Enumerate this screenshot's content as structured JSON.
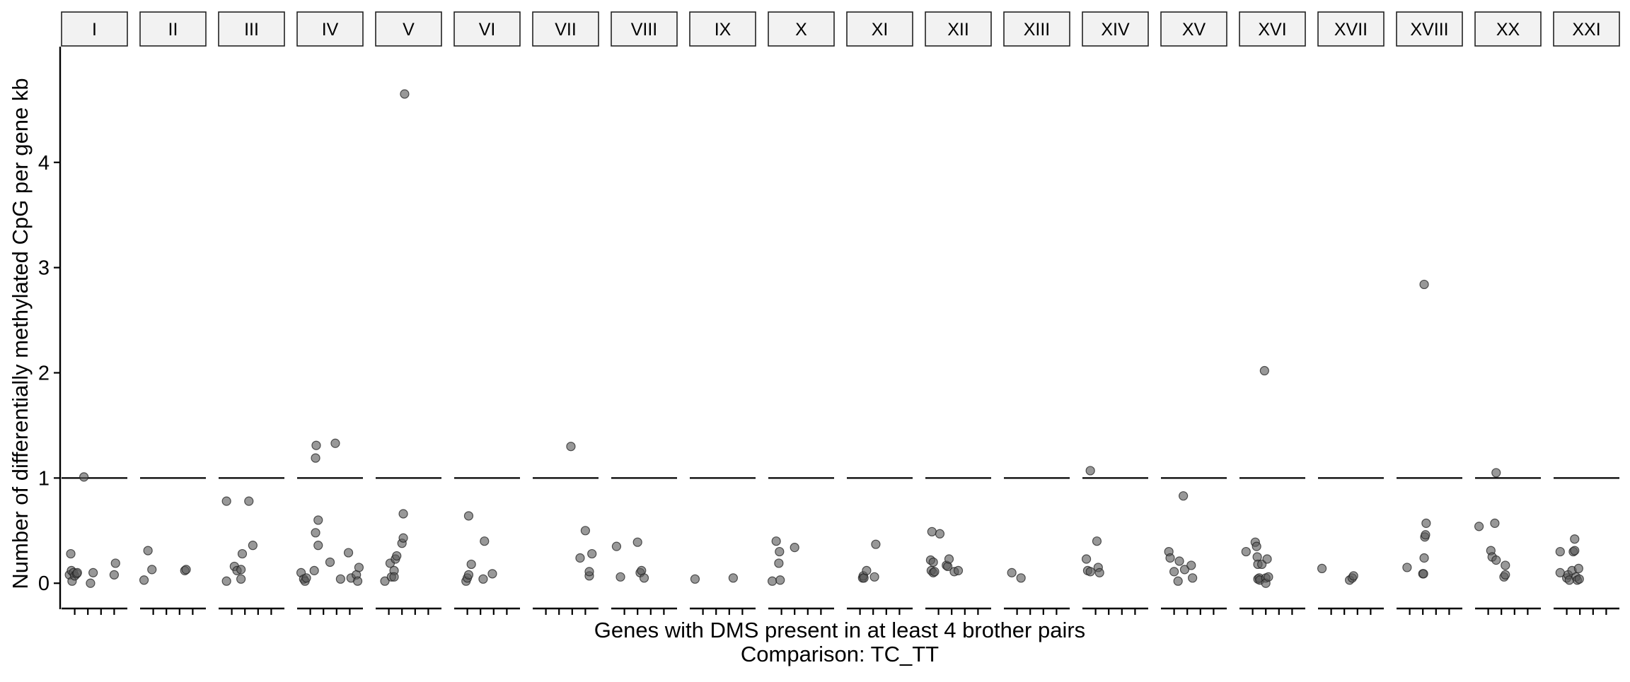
{
  "chart_data": {
    "type": "scatter",
    "facet_by": "chromosome",
    "ylabel": "Number of differentially methylated CpG per gene kb",
    "xlabel": "Genes with DMS present in at least 4 brother pairs",
    "caption": "Comparison: TC_TT",
    "ylim": [
      -0.22,
      5.1
    ],
    "yticks": [
      0,
      1,
      2,
      3,
      4
    ],
    "x_per_panel": [
      0,
      5
    ],
    "x_ticks_per_panel": [
      1,
      2,
      3,
      4
    ],
    "reference_line_y": 1,
    "grid": false,
    "panels": [
      {
        "label": "I",
        "points": [
          {
            "x": 0.6,
            "y": 0.08
          },
          {
            "x": 0.7,
            "y": 0.28
          },
          {
            "x": 0.75,
            "y": 0.12
          },
          {
            "x": 0.8,
            "y": 0.02
          },
          {
            "x": 0.9,
            "y": 0.1
          },
          {
            "x": 1.0,
            "y": 0.07
          },
          {
            "x": 1.15,
            "y": 0.09
          },
          {
            "x": 1.2,
            "y": 0.1
          },
          {
            "x": 1.7,
            "y": 1.01
          },
          {
            "x": 2.2,
            "y": 0.0
          },
          {
            "x": 2.4,
            "y": 0.1
          },
          {
            "x": 4.0,
            "y": 0.08
          },
          {
            "x": 4.1,
            "y": 0.19
          }
        ]
      },
      {
        "label": "II",
        "points": [
          {
            "x": 0.3,
            "y": 0.03
          },
          {
            "x": 0.6,
            "y": 0.31
          },
          {
            "x": 0.9,
            "y": 0.13
          },
          {
            "x": 3.4,
            "y": 0.12
          },
          {
            "x": 3.5,
            "y": 0.13
          }
        ]
      },
      {
        "label": "III",
        "points": [
          {
            "x": 0.6,
            "y": 0.02
          },
          {
            "x": 0.6,
            "y": 0.78
          },
          {
            "x": 1.2,
            "y": 0.16
          },
          {
            "x": 1.4,
            "y": 0.12
          },
          {
            "x": 1.7,
            "y": 0.04
          },
          {
            "x": 1.7,
            "y": 0.13
          },
          {
            "x": 1.8,
            "y": 0.28
          },
          {
            "x": 2.3,
            "y": 0.78
          },
          {
            "x": 2.6,
            "y": 0.36
          }
        ]
      },
      {
        "label": "IV",
        "points": [
          {
            "x": 0.3,
            "y": 0.1
          },
          {
            "x": 0.5,
            "y": 0.04
          },
          {
            "x": 0.6,
            "y": 0.02
          },
          {
            "x": 0.7,
            "y": 0.05
          },
          {
            "x": 1.3,
            "y": 0.12
          },
          {
            "x": 1.4,
            "y": 0.48
          },
          {
            "x": 1.4,
            "y": 1.19
          },
          {
            "x": 1.45,
            "y": 1.31
          },
          {
            "x": 1.6,
            "y": 0.6
          },
          {
            "x": 1.6,
            "y": 0.36
          },
          {
            "x": 2.5,
            "y": 0.2
          },
          {
            "x": 2.9,
            "y": 1.33
          },
          {
            "x": 3.3,
            "y": 0.04
          },
          {
            "x": 3.9,
            "y": 0.29
          },
          {
            "x": 4.1,
            "y": 0.05
          },
          {
            "x": 4.5,
            "y": 0.08
          },
          {
            "x": 4.6,
            "y": 0.02
          },
          {
            "x": 4.7,
            "y": 0.15
          }
        ]
      },
      {
        "label": "V",
        "points": [
          {
            "x": 0.7,
            "y": 0.02
          },
          {
            "x": 1.1,
            "y": 0.19
          },
          {
            "x": 1.2,
            "y": 0.06
          },
          {
            "x": 1.4,
            "y": 0.12
          },
          {
            "x": 1.4,
            "y": 0.06
          },
          {
            "x": 1.5,
            "y": 0.23
          },
          {
            "x": 1.6,
            "y": 0.26
          },
          {
            "x": 2.0,
            "y": 0.38
          },
          {
            "x": 2.1,
            "y": 0.43
          },
          {
            "x": 2.1,
            "y": 0.66
          },
          {
            "x": 2.2,
            "y": 4.65
          }
        ]
      },
      {
        "label": "VI",
        "points": [
          {
            "x": 0.9,
            "y": 0.02
          },
          {
            "x": 1.0,
            "y": 0.05
          },
          {
            "x": 1.1,
            "y": 0.08
          },
          {
            "x": 1.1,
            "y": 0.64
          },
          {
            "x": 1.3,
            "y": 0.18
          },
          {
            "x": 2.2,
            "y": 0.04
          },
          {
            "x": 2.3,
            "y": 0.4
          },
          {
            "x": 2.9,
            "y": 0.09
          }
        ]
      },
      {
        "label": "VII",
        "points": [
          {
            "x": 2.9,
            "y": 1.3
          },
          {
            "x": 3.6,
            "y": 0.24
          },
          {
            "x": 4.0,
            "y": 0.5
          },
          {
            "x": 4.3,
            "y": 0.07
          },
          {
            "x": 4.3,
            "y": 0.11
          },
          {
            "x": 4.5,
            "y": 0.28
          }
        ]
      },
      {
        "label": "VIII",
        "points": [
          {
            "x": 0.4,
            "y": 0.35
          },
          {
            "x": 0.7,
            "y": 0.06
          },
          {
            "x": 2.0,
            "y": 0.39
          },
          {
            "x": 2.2,
            "y": 0.1
          },
          {
            "x": 2.3,
            "y": 0.12
          },
          {
            "x": 2.5,
            "y": 0.05
          }
        ]
      },
      {
        "label": "IX",
        "points": [
          {
            "x": 0.4,
            "y": 0.04
          },
          {
            "x": 3.3,
            "y": 0.05
          }
        ]
      },
      {
        "label": "X",
        "points": [
          {
            "x": 0.3,
            "y": 0.02
          },
          {
            "x": 0.6,
            "y": 0.4
          },
          {
            "x": 0.8,
            "y": 0.19
          },
          {
            "x": 0.85,
            "y": 0.3
          },
          {
            "x": 0.9,
            "y": 0.03
          },
          {
            "x": 2.0,
            "y": 0.34
          }
        ]
      },
      {
        "label": "XI",
        "points": [
          {
            "x": 1.2,
            "y": 0.05
          },
          {
            "x": 1.25,
            "y": 0.07
          },
          {
            "x": 1.3,
            "y": 0.05
          },
          {
            "x": 1.5,
            "y": 0.12
          },
          {
            "x": 2.1,
            "y": 0.06
          },
          {
            "x": 2.2,
            "y": 0.37
          }
        ]
      },
      {
        "label": "XII",
        "points": [
          {
            "x": 0.4,
            "y": 0.22
          },
          {
            "x": 0.45,
            "y": 0.12
          },
          {
            "x": 0.5,
            "y": 0.49
          },
          {
            "x": 0.6,
            "y": 0.2
          },
          {
            "x": 0.6,
            "y": 0.1
          },
          {
            "x": 0.7,
            "y": 0.11
          },
          {
            "x": 1.1,
            "y": 0.47
          },
          {
            "x": 1.6,
            "y": 0.17
          },
          {
            "x": 1.7,
            "y": 0.16
          },
          {
            "x": 1.8,
            "y": 0.23
          },
          {
            "x": 2.2,
            "y": 0.11
          },
          {
            "x": 2.5,
            "y": 0.12
          }
        ]
      },
      {
        "label": "XIII",
        "points": [
          {
            "x": 0.6,
            "y": 0.1
          },
          {
            "x": 1.3,
            "y": 0.05
          }
        ]
      },
      {
        "label": "XIV",
        "points": [
          {
            "x": 0.3,
            "y": 0.23
          },
          {
            "x": 0.4,
            "y": 0.12
          },
          {
            "x": 0.6,
            "y": 0.11
          },
          {
            "x": 0.6,
            "y": 1.07
          },
          {
            "x": 1.1,
            "y": 0.4
          },
          {
            "x": 1.2,
            "y": 0.15
          },
          {
            "x": 1.3,
            "y": 0.1
          }
        ]
      },
      {
        "label": "XV",
        "points": [
          {
            "x": 0.6,
            "y": 0.3
          },
          {
            "x": 0.7,
            "y": 0.24
          },
          {
            "x": 1.0,
            "y": 0.11
          },
          {
            "x": 1.3,
            "y": 0.02
          },
          {
            "x": 1.4,
            "y": 0.21
          },
          {
            "x": 1.7,
            "y": 0.83
          },
          {
            "x": 1.8,
            "y": 0.13
          },
          {
            "x": 2.3,
            "y": 0.17
          },
          {
            "x": 2.4,
            "y": 0.05
          }
        ]
      },
      {
        "label": "XVI",
        "points": [
          {
            "x": 0.5,
            "y": 0.3
          },
          {
            "x": 1.2,
            "y": 0.39
          },
          {
            "x": 1.3,
            "y": 0.35
          },
          {
            "x": 1.35,
            "y": 0.25
          },
          {
            "x": 1.4,
            "y": 0.18
          },
          {
            "x": 1.4,
            "y": 0.04
          },
          {
            "x": 1.5,
            "y": 0.05
          },
          {
            "x": 1.55,
            "y": 0.03
          },
          {
            "x": 1.7,
            "y": 0.18
          },
          {
            "x": 2.0,
            "y": 0.05
          },
          {
            "x": 2.0,
            "y": 0.0
          },
          {
            "x": 2.1,
            "y": 0.23
          },
          {
            "x": 2.2,
            "y": 0.06
          },
          {
            "x": 1.9,
            "y": 2.02
          }
        ]
      },
      {
        "label": "XVII",
        "points": [
          {
            "x": 0.3,
            "y": 0.14
          },
          {
            "x": 2.4,
            "y": 0.03
          },
          {
            "x": 2.6,
            "y": 0.05
          },
          {
            "x": 2.7,
            "y": 0.07
          }
        ]
      },
      {
        "label": "XVIII",
        "points": [
          {
            "x": 0.8,
            "y": 0.15
          },
          {
            "x": 2.0,
            "y": 0.09
          },
          {
            "x": 2.05,
            "y": 0.09
          },
          {
            "x": 2.1,
            "y": 0.24
          },
          {
            "x": 2.15,
            "y": 0.44
          },
          {
            "x": 2.2,
            "y": 0.46
          },
          {
            "x": 2.25,
            "y": 0.57
          },
          {
            "x": 2.1,
            "y": 2.84
          }
        ]
      },
      {
        "label": "XX",
        "points": [
          {
            "x": 0.3,
            "y": 0.54
          },
          {
            "x": 1.2,
            "y": 0.31
          },
          {
            "x": 1.3,
            "y": 0.25
          },
          {
            "x": 1.5,
            "y": 0.57
          },
          {
            "x": 1.6,
            "y": 0.22
          },
          {
            "x": 1.6,
            "y": 1.05
          },
          {
            "x": 2.2,
            "y": 0.06
          },
          {
            "x": 2.3,
            "y": 0.08
          },
          {
            "x": 2.3,
            "y": 0.17
          }
        ]
      },
      {
        "label": "XXI",
        "points": [
          {
            "x": 0.5,
            "y": 0.3
          },
          {
            "x": 0.5,
            "y": 0.1
          },
          {
            "x": 1.0,
            "y": 0.05
          },
          {
            "x": 1.1,
            "y": 0.08
          },
          {
            "x": 1.2,
            "y": 0.03
          },
          {
            "x": 1.4,
            "y": 0.12
          },
          {
            "x": 1.5,
            "y": 0.3
          },
          {
            "x": 1.6,
            "y": 0.31
          },
          {
            "x": 1.6,
            "y": 0.42
          },
          {
            "x": 1.7,
            "y": 0.06
          },
          {
            "x": 1.8,
            "y": 0.03
          },
          {
            "x": 1.9,
            "y": 0.14
          },
          {
            "x": 1.95,
            "y": 0.04
          }
        ]
      }
    ]
  }
}
